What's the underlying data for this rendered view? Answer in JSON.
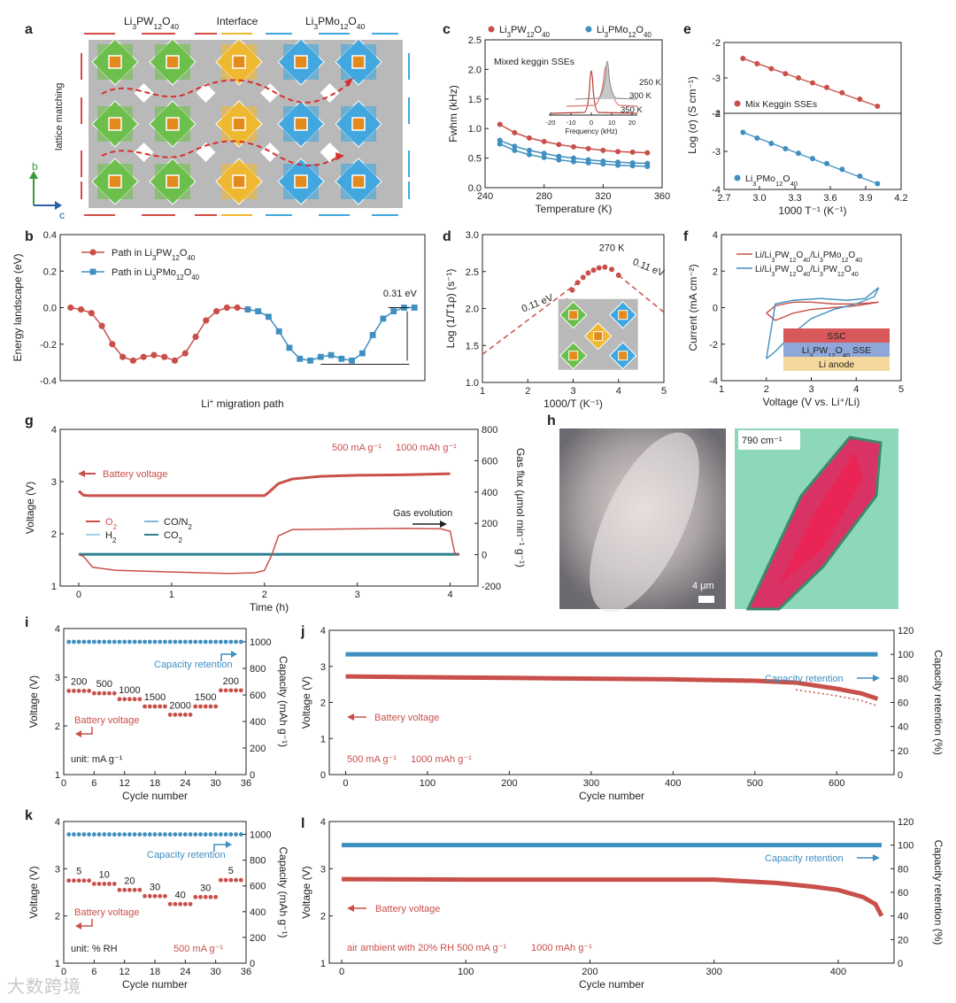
{
  "watermark": "大数跨境",
  "colors": {
    "red": "#c9504a",
    "blue": "#3f8fc0",
    "teal": "#2f7f86",
    "lightblue": "#a9d3e6",
    "pink": "#e99a96"
  },
  "panel_letters": {
    "a": "a",
    "b": "b",
    "c": "c",
    "d": "d",
    "e": "e",
    "f": "f",
    "g": "g",
    "h": "h",
    "i": "i",
    "j": "j",
    "k": "k",
    "l": "l"
  },
  "panel_a": {
    "label_left": "Li3PW12O40",
    "label_mid": "Interface",
    "label_right": "Li3PMo12O40",
    "side_label": "lattice matching",
    "axis_b": "b",
    "axis_c": "c"
  },
  "chart_data": [
    {
      "id": "b",
      "type": "line",
      "xlabel": "Li+ migration path",
      "ylabel": "Energy landscape (eV)",
      "ylim": [
        -0.4,
        0.4
      ],
      "yticks": [
        -0.4,
        -0.2,
        0.0,
        0.2,
        0.4
      ],
      "annotation": "0.31 eV",
      "series": [
        {
          "name": "Path in Li3PW12O40",
          "x": [
            0,
            1,
            2,
            3,
            4,
            5,
            6,
            7,
            8,
            9,
            10,
            11,
            12,
            13,
            14,
            15,
            16,
            17
          ],
          "values": [
            0.0,
            -0.01,
            -0.03,
            -0.1,
            -0.2,
            -0.27,
            -0.29,
            -0.27,
            -0.26,
            -0.27,
            -0.29,
            -0.25,
            -0.16,
            -0.07,
            -0.02,
            0.0,
            0.0,
            -0.01
          ]
        },
        {
          "name": "Path in Li3PMo12O40",
          "x": [
            17,
            18,
            19,
            20,
            21,
            22,
            23,
            24,
            25,
            26,
            27,
            28,
            29,
            30,
            31,
            32,
            33
          ],
          "values": [
            -0.01,
            -0.02,
            -0.05,
            -0.13,
            -0.22,
            -0.28,
            -0.29,
            -0.27,
            -0.26,
            -0.28,
            -0.29,
            -0.25,
            -0.15,
            -0.06,
            -0.02,
            0.0,
            0.0
          ]
        }
      ]
    },
    {
      "id": "c",
      "type": "line",
      "xlabel": "Temperature (K)",
      "ylabel": "Fwhm (kHz)",
      "xlim": [
        240,
        360
      ],
      "ylim": [
        0,
        2.5
      ],
      "xticks": [
        240,
        280,
        320,
        360
      ],
      "yticks": [
        0.0,
        0.5,
        1.0,
        1.5,
        2.0,
        2.5
      ],
      "series": [
        {
          "name": "Li3PW12O40",
          "x": [
            250,
            260,
            270,
            280,
            290,
            300,
            310,
            320,
            330,
            340,
            350
          ],
          "values": [
            1.07,
            0.93,
            0.84,
            0.78,
            0.73,
            0.69,
            0.66,
            0.63,
            0.61,
            0.6,
            0.59
          ]
        },
        {
          "name": "Li3PMo12O40",
          "x": [
            250,
            260,
            270,
            280,
            290,
            300,
            310,
            320,
            330,
            340,
            350
          ],
          "values": [
            0.8,
            0.7,
            0.63,
            0.58,
            0.53,
            0.5,
            0.47,
            0.45,
            0.43,
            0.42,
            0.41
          ]
        },
        {
          "name": "",
          "x": [
            250,
            260,
            270,
            280,
            290,
            300,
            310,
            320,
            330,
            340,
            350
          ],
          "values": [
            0.74,
            0.63,
            0.56,
            0.51,
            0.47,
            0.44,
            0.42,
            0.4,
            0.38,
            0.37,
            0.36
          ]
        }
      ],
      "inset": {
        "title": "Mixed keggin SSEs",
        "xlabel": "Frequency (kHz)",
        "xticks": [
          -20,
          -10,
          0,
          10,
          20
        ],
        "curve_labels": [
          "250 K",
          "300 K",
          "350 K"
        ]
      }
    },
    {
      "id": "d",
      "type": "line",
      "xlabel": "1000/T (K⁻¹)",
      "ylabel": "Log (1/T1ρ) (s⁻¹)",
      "xlim": [
        1,
        5
      ],
      "ylim": [
        1.0,
        3.0
      ],
      "xticks": [
        1,
        2,
        3,
        4,
        5
      ],
      "yticks": [
        1.0,
        1.5,
        2.0,
        2.5,
        3.0
      ],
      "annotations": [
        "270 K",
        "0.11 eV",
        "0.11 eV"
      ],
      "x": [
        2.86,
        2.98,
        3.1,
        3.22,
        3.33,
        3.45,
        3.57,
        3.7,
        3.85,
        4.0
      ],
      "values": [
        2.1,
        2.25,
        2.35,
        2.42,
        2.48,
        2.52,
        2.55,
        2.56,
        2.53,
        2.45
      ]
    },
    {
      "id": "e_top",
      "type": "line",
      "xlabel": "",
      "ylabel": "Log (σ) (S cm⁻¹)",
      "xlim": [
        2.7,
        4.2
      ],
      "ylim": [
        -4,
        -2
      ],
      "yticks": [
        -2,
        -3,
        -4
      ],
      "series": [
        {
          "name": "Mix Keggin SSEs",
          "x": [
            2.86,
            2.98,
            3.1,
            3.22,
            3.33,
            3.45,
            3.57,
            3.7,
            3.85,
            4.0
          ],
          "values": [
            -2.45,
            -2.6,
            -2.74,
            -2.88,
            -3.0,
            -3.14,
            -3.27,
            -3.42,
            -3.6,
            -3.8
          ]
        }
      ]
    },
    {
      "id": "e_bottom",
      "type": "line",
      "xlabel": "1000 T⁻¹ (K⁻¹)",
      "ylabel": "",
      "xlim": [
        2.7,
        4.2
      ],
      "ylim": [
        -4,
        -2
      ],
      "xticks": [
        2.7,
        3.0,
        3.3,
        3.6,
        3.9,
        4.2
      ],
      "yticks": [
        -2,
        -3,
        -4
      ],
      "series": [
        {
          "name": "Li3PMo12O40",
          "x": [
            2.86,
            2.98,
            3.1,
            3.22,
            3.33,
            3.45,
            3.57,
            3.7,
            3.85,
            4.0
          ],
          "values": [
            -2.5,
            -2.65,
            -2.79,
            -2.93,
            -3.05,
            -3.19,
            -3.32,
            -3.47,
            -3.65,
            -3.85
          ]
        }
      ]
    },
    {
      "id": "f",
      "type": "line",
      "xlabel": "Voltage (V vs. Li⁺/Li)",
      "ylabel": "Current (mA cm⁻²)",
      "xlim": [
        1,
        5
      ],
      "ylim": [
        -4,
        4
      ],
      "xticks": [
        1,
        2,
        3,
        4,
        5
      ],
      "yticks": [
        -4,
        -2,
        0,
        2,
        4
      ],
      "stack_labels": [
        "SSC",
        "Li3PW12O40 SSE",
        "Li anode"
      ],
      "series": [
        {
          "name": "Li/Li3PW12O40/Li3PMo12O40",
          "x": [
            2.0,
            2.2,
            2.6,
            3.0,
            3.5,
            4.0,
            4.5,
            4.5,
            4.0,
            3.5,
            3.0,
            2.6,
            2.2,
            2.0
          ],
          "values": [
            -0.3,
            -0.7,
            -0.3,
            -0.1,
            0.0,
            0.1,
            0.3,
            0.3,
            0.2,
            0.2,
            0.3,
            0.3,
            0.1,
            -0.3
          ]
        },
        {
          "name": "Li/Li3PW12O40/Li3PW12O40",
          "x": [
            2.0,
            2.2,
            2.6,
            3.0,
            3.5,
            4.0,
            4.4,
            4.5,
            4.2,
            3.8,
            3.2,
            2.6,
            2.2,
            2.0
          ],
          "values": [
            -2.8,
            -2.4,
            -1.4,
            -0.6,
            -0.1,
            0.2,
            0.6,
            1.1,
            0.5,
            0.4,
            0.5,
            0.4,
            0.2,
            -2.8
          ]
        }
      ]
    },
    {
      "id": "g",
      "type": "line",
      "xlabel": "Time (h)",
      "ylabel": "Voltage (V)",
      "ylabel_right": "Gas flux (μmol min⁻¹ g⁻¹)",
      "xlim": [
        -0.2,
        4.3
      ],
      "ylim": [
        1,
        4
      ],
      "ylim_right": [
        -200,
        800
      ],
      "xticks": [
        0,
        1,
        2,
        3,
        4
      ],
      "yticks": [
        1,
        2,
        3,
        4
      ],
      "yticks_right": [
        -200,
        0,
        200,
        400,
        600,
        800
      ],
      "annotations": [
        "500 mA g⁻¹",
        "1000 mAh g⁻¹",
        "Battery voltage",
        "Gas evolution"
      ],
      "series": [
        {
          "name": "Battery voltage",
          "x": [
            0,
            0.05,
            0.1,
            1.0,
            1.9,
            2.0,
            2.05,
            2.15,
            2.3,
            2.6,
            3.0,
            3.5,
            4.0
          ],
          "values": [
            2.82,
            2.74,
            2.73,
            2.73,
            2.73,
            2.73,
            2.8,
            2.96,
            3.05,
            3.1,
            3.12,
            3.13,
            3.15
          ]
        },
        {
          "name": "O2",
          "x": [
            0,
            0.05,
            0.15,
            0.4,
            1.0,
            1.6,
            1.9,
            2.0,
            2.08,
            2.15,
            2.3,
            3.0,
            3.5,
            3.9,
            4.0,
            4.05,
            4.1
          ],
          "values": [
            0,
            -10,
            -80,
            -100,
            -110,
            -120,
            -115,
            -100,
            0,
            120,
            160,
            165,
            168,
            165,
            150,
            10,
            0
          ]
        },
        {
          "name": "CO/N2",
          "x": [
            0,
            4.1
          ],
          "values": [
            5,
            5
          ]
        },
        {
          "name": "H2",
          "x": [
            0,
            4.1
          ],
          "values": [
            0,
            0
          ]
        },
        {
          "name": "CO2",
          "x": [
            0,
            4.1
          ],
          "values": [
            2,
            2
          ]
        }
      ]
    },
    {
      "id": "i",
      "type": "scatter",
      "xlabel": "Cycle number",
      "ylabel": "Voltage (V)",
      "ylabel_right": "Capacity (mAh g⁻¹)",
      "xlim": [
        0,
        36
      ],
      "ylim": [
        1,
        4
      ],
      "ylim_right": [
        0,
        1100
      ],
      "xticks": [
        0,
        6,
        12,
        18,
        24,
        30,
        36
      ],
      "yticks": [
        1,
        2,
        3,
        4
      ],
      "yticks_right": [
        0,
        200,
        400,
        600,
        800,
        1000
      ],
      "rate_labels": [
        "200",
        "500",
        "1000",
        "1500",
        "2000",
        "1500",
        "200"
      ],
      "annotations": [
        "Capacity retention",
        "Battery voltage",
        "unit: mA g⁻¹"
      ],
      "voltage_steps": [
        2.72,
        2.67,
        2.55,
        2.4,
        2.23,
        2.4,
        2.73
      ],
      "capacity": 1000
    },
    {
      "id": "j",
      "type": "scatter",
      "xlabel": "Cycle number",
      "ylabel": "Voltage (V)",
      "ylabel_right": "Capacity retention (%)",
      "xlim": [
        -20,
        670
      ],
      "ylim": [
        0,
        4
      ],
      "ylim_right": [
        0,
        120
      ],
      "xticks": [
        0,
        100,
        200,
        300,
        400,
        500,
        600
      ],
      "yticks": [
        0,
        1,
        2,
        3,
        4
      ],
      "yticks_right": [
        0,
        20,
        40,
        60,
        80,
        100,
        120
      ],
      "annotations": [
        "Capacity retention",
        "Battery voltage",
        "500 mA g⁻¹",
        "1000 mAh g⁻¹"
      ],
      "series": [
        {
          "name": "Capacity retention",
          "x": [
            0,
            650
          ],
          "values": [
            100,
            100
          ]
        },
        {
          "name": "Battery voltage",
          "x": [
            0,
            100,
            200,
            300,
            400,
            500,
            550,
            600,
            630,
            650
          ],
          "values": [
            2.72,
            2.7,
            2.68,
            2.66,
            2.64,
            2.6,
            2.55,
            2.38,
            2.25,
            2.1
          ]
        }
      ]
    },
    {
      "id": "k",
      "type": "scatter",
      "xlabel": "Cycle number",
      "ylabel": "Voltage (V)",
      "ylabel_right": "Capacity (mAh g⁻¹)",
      "xlim": [
        0,
        36
      ],
      "ylim": [
        1,
        4
      ],
      "ylim_right": [
        0,
        1100
      ],
      "xticks": [
        0,
        6,
        12,
        18,
        24,
        30,
        36
      ],
      "yticks": [
        1,
        2,
        3,
        4
      ],
      "yticks_right": [
        0,
        200,
        400,
        600,
        800,
        1000
      ],
      "rh_labels": [
        "5",
        "10",
        "20",
        "30",
        "40",
        "30",
        "5"
      ],
      "annotations": [
        "Capacity retention",
        "Battery voltage",
        "unit: % RH",
        "500 mA g⁻¹"
      ],
      "voltage_steps": [
        2.75,
        2.68,
        2.55,
        2.42,
        2.25,
        2.4,
        2.76
      ],
      "capacity": 1000
    },
    {
      "id": "l",
      "type": "scatter",
      "xlabel": "Cycle number",
      "ylabel": "Voltage (V)",
      "ylabel_right": "Capacity retention (%)",
      "xlim": [
        -10,
        445
      ],
      "ylim": [
        1,
        4
      ],
      "ylim_right": [
        0,
        120
      ],
      "xticks": [
        0,
        100,
        200,
        300,
        400
      ],
      "yticks": [
        1,
        2,
        3,
        4
      ],
      "yticks_right": [
        0,
        20,
        40,
        60,
        80,
        100,
        120
      ],
      "annotations": [
        "Capacity retention",
        "Battery voltage",
        "air ambient with 20% RH 500 mA g⁻¹",
        "1000 mAh g⁻¹"
      ],
      "series": [
        {
          "name": "Capacity retention",
          "x": [
            0,
            435
          ],
          "values": [
            100,
            100
          ]
        },
        {
          "name": "Battery voltage",
          "x": [
            0,
            100,
            200,
            300,
            350,
            380,
            400,
            420,
            430,
            435
          ],
          "values": [
            2.78,
            2.77,
            2.77,
            2.77,
            2.7,
            2.62,
            2.55,
            2.4,
            2.25,
            2.0
          ]
        }
      ]
    }
  ],
  "panel_h": {
    "wavenumber": "790 cm⁻¹",
    "scale": "4 μm"
  }
}
